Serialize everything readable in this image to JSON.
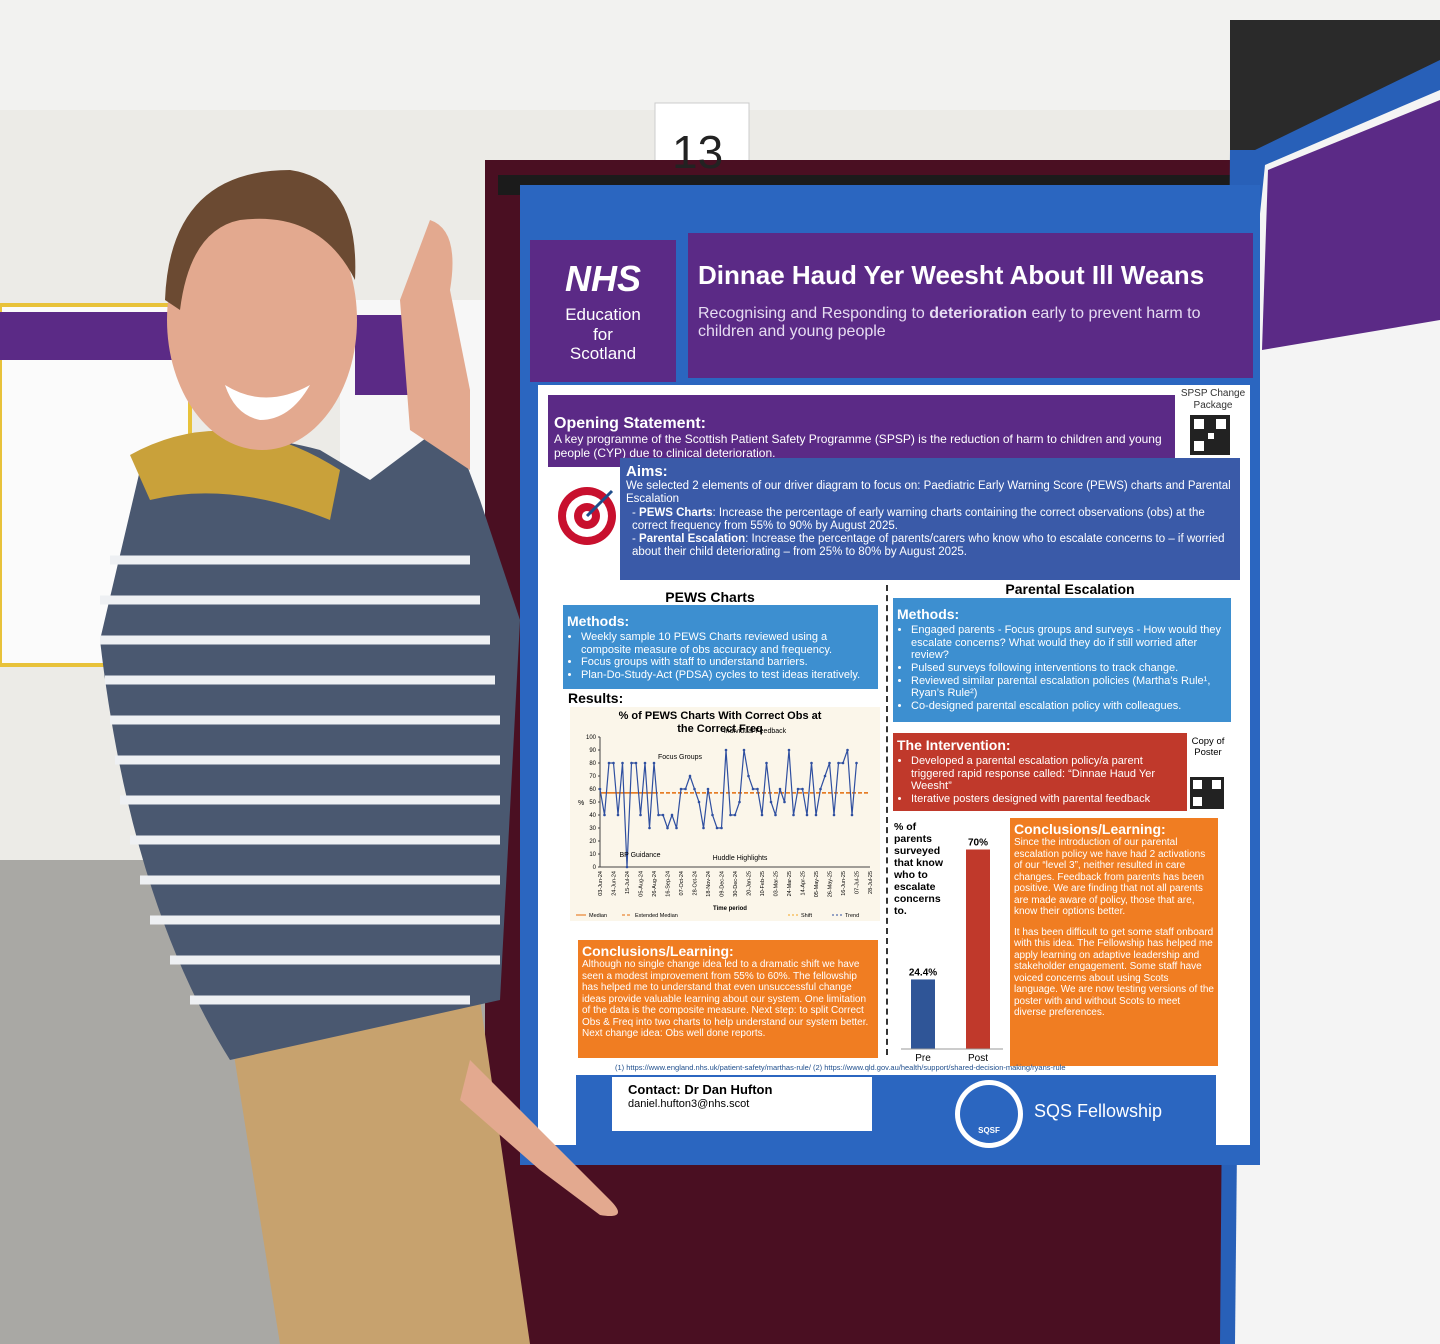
{
  "scene": {
    "sign": "13"
  },
  "poster": {
    "logo": {
      "nhs": "NHS",
      "line1": "Education",
      "line2": "for",
      "line3": "Scotland"
    },
    "title": "Dinnae Haud Yer Weesht About Ill Weans",
    "subtitle": {
      "before": "Recognising and Responding to ",
      "bold": "deterioration",
      "after": " early to prevent harm to children and young people"
    },
    "opening": {
      "heading": "Opening Statement:",
      "text": "A key programme of the Scottish Patient Safety Programme (SPSP) is the reduction of harm to children and young people (CYP) due to clinical deterioration."
    },
    "qr_label": "SPSP Change Package",
    "aims": {
      "heading": "Aims:",
      "intro": "We selected 2 elements of our driver diagram to focus on: Paediatric Early Warning Score (PEWS) charts and Parental Escalation",
      "items": [
        {
          "label": "PEWS Charts",
          "text": ": Increase the percentage of early warning charts containing the correct observations (obs) at the correct frequency from 55% to 90% by August 2025."
        },
        {
          "label": "Parental Escalation",
          "text": ": Increase the percentage of parents/carers who know who to escalate concerns to – if worried about their child deteriorating – from 25% to 80% by August 2025."
        }
      ]
    },
    "left": {
      "heading": "PEWS Charts",
      "methods_heading": "Methods:",
      "methods": [
        "Weekly sample 10 PEWS Charts reviewed using a composite measure of obs accuracy and frequency.",
        "Focus groups with staff to understand barriers.",
        "Plan-Do-Study-Act (PDSA) cycles to test ideas iteratively."
      ],
      "results_heading": "Results:",
      "conclusions_heading": "Conclusions/Learning:",
      "conclusions": "Although no single change idea led to a dramatic shift we have seen a modest improvement from 55% to 60%. The fellowship has helped me to understand that even unsuccessful change ideas provide valuable learning about our system. One limitation of the data is the composite measure. Next step: to split Correct Obs & Freq into two charts to help understand our system better. Next change idea: Obs well done reports."
    },
    "run_chart": {
      "type": "line",
      "title": "% of PEWS Charts With Correct Obs at the Correct Freq",
      "y_label": "%",
      "x_label": "Time period",
      "ylim": [
        0,
        100
      ],
      "yticks": [
        0,
        10,
        20,
        30,
        40,
        50,
        60,
        70,
        80,
        90,
        100
      ],
      "categories": [
        "03-Jun-24",
        null,
        null,
        "24-Jun-24",
        null,
        null,
        "15-Jul-24",
        null,
        null,
        "05-Aug-24",
        null,
        null,
        "26-Aug-24",
        null,
        null,
        "16-Sep-24",
        null,
        null,
        "07-Oct-24",
        null,
        null,
        "28-Oct-24",
        null,
        null,
        "18-Nov-24",
        null,
        null,
        "09-Dec-24",
        null,
        null,
        "30-Dec-24",
        null,
        null,
        "20-Jan-25",
        null,
        null,
        "10-Feb-25",
        null,
        null,
        "03-Mar-25",
        null,
        null,
        "24-Mar-25",
        null,
        null,
        "14-Apr-25",
        null,
        null,
        "05-May-25",
        null,
        null,
        "26-May-25",
        null,
        null,
        "16-Jun-25",
        null,
        null,
        "07-Jul-25",
        null,
        null,
        "28-Jul-25"
      ],
      "values": [
        60,
        40,
        80,
        80,
        40,
        80,
        0,
        80,
        80,
        40,
        80,
        30,
        80,
        40,
        40,
        30,
        40,
        30,
        60,
        60,
        70,
        60,
        50,
        30,
        60,
        40,
        30,
        30,
        90,
        40,
        40,
        50,
        90,
        70,
        60,
        60,
        40,
        80,
        50,
        40,
        60,
        50,
        90,
        40,
        60,
        60,
        40,
        80,
        40,
        60,
        70,
        80,
        40,
        80,
        80,
        90,
        40,
        80,
        null,
        null,
        null
      ],
      "color": "#2f4fa0",
      "median": 57,
      "median_color": "#e46c0a",
      "annotations": [
        "Focus Groups",
        "Individual Feedback",
        "BP Guidance",
        "Huddle Highlights"
      ],
      "legend": [
        "Median",
        "Extended Median",
        "Shift",
        "Trend"
      ]
    },
    "right": {
      "heading": "Parental Escalation",
      "methods_heading": "Methods:",
      "methods": [
        "Engaged parents - Focus groups and surveys - How would they escalate concerns? What would they do if still worried after review?",
        "Pulsed surveys following interventions to track change.",
        "Reviewed similar parental escalation policies (Martha’s Rule¹, Ryan’s Rule²)",
        "Co-designed parental escalation policy with colleagues."
      ],
      "intervention_heading": "The Intervention:",
      "intervention": [
        "Developed a parental escalation policy/a parent triggered rapid response called: “Dinnae Haud Yer Weesht”",
        "Iterative posters designed with parental feedback"
      ],
      "copy_label": "Copy of Poster",
      "conclusions_heading": "Conclusions/Learning:",
      "conclusions": [
        "Since the introduction of our parental escalation policy we have had 2 activations of our “level 3”, neither resulted in care changes. Feedback from parents has been positive. We are finding that not all parents are made aware of policy, those that are, know their options better.",
        "It has been difficult to get some staff onboard with this idea. The Fellowship has helped me apply learning on adaptive leadership and stakeholder engagement. Some staff have voiced concerns about using Scots language. We are now testing versions of the poster with and without Scots to meet diverse preferences."
      ]
    },
    "bar_chart": {
      "type": "bar",
      "label": "% of parents surveyed that know who to escalate concerns to.",
      "categories": [
        "Pre",
        "Post"
      ],
      "values": [
        24.4,
        70
      ],
      "value_labels": [
        "24.4%",
        "70%"
      ],
      "colors": [
        "#2f5597",
        "#c0392b"
      ]
    },
    "references": "(1) https://www.england.nhs.uk/patient-safety/marthas-rule/ (2) https://www.qld.gov.au/health/support/shared-decision-making/ryans-rule",
    "contact": {
      "name": "Contact: Dr Dan Hufton",
      "email": "daniel.hufton3@nhs.scot"
    },
    "fellowship": "SQS Fellowship",
    "sqsf": "SQSF"
  }
}
